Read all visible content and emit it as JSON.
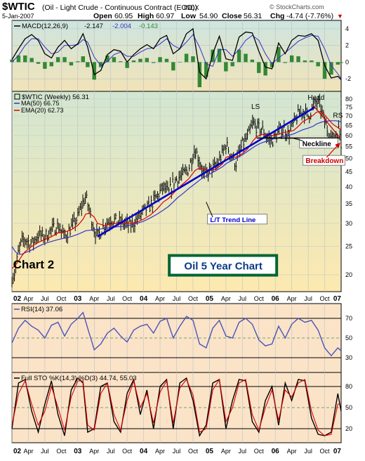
{
  "header": {
    "symbol": "$WTIC",
    "description": "(Oil - Light Crude - Continuous Contract (EOD))",
    "exchange": "INDX",
    "date": "5-Jan-2007",
    "open_label": "Open",
    "open": "60.95",
    "high_label": "High",
    "high": "60.97",
    "low_label": "Low",
    "low": "54.90",
    "close_label": "Close",
    "close": "56.31",
    "chg_label": "Chg",
    "chg": "-4.74 (-7.76%)",
    "chg_marker": "▼",
    "watermark": "© StockCharts.com"
  },
  "colors": {
    "price_bg_top": "#d2e6d2",
    "price_bg_bottom": "#fde9b0",
    "panel_bg": "#fbe3c8",
    "macd_bg_top": "#cde5e0",
    "macd_bg_bottom": "#f2e3b8",
    "price": "#000000",
    "ma50": "#3333cc",
    "ema20": "#dd0000",
    "rsi": "#4a55bb",
    "histogram": "#338833",
    "trendline": "#0000cc",
    "breakdown": "#cc0000",
    "title_box": "#006633",
    "title_text": "#0a3a8a"
  },
  "chart_data": [
    {
      "panel": "macd",
      "type": "line",
      "title": "MACD(12,26,9) -2.147, -2.004 -0.143",
      "legend": {
        "name": "MACD(12,26,9)",
        "macd": "-2.147",
        "signal": "-2.004",
        "histogram": "-0.143"
      },
      "y_ticks": [
        "4",
        "2",
        "0",
        "-2"
      ],
      "ylim": [
        -3.5,
        5.0
      ],
      "x": [
        2002.0,
        2002.1,
        2002.2,
        2002.3,
        2002.4,
        2002.5,
        2002.6,
        2002.7,
        2002.8,
        2002.9,
        2003.0,
        2003.08,
        2003.15,
        2003.25,
        2003.35,
        2003.45,
        2003.55,
        2003.65,
        2003.75,
        2003.85,
        2003.95,
        2004.05,
        2004.15,
        2004.25,
        2004.35,
        2004.45,
        2004.55,
        2004.65,
        2004.75,
        2004.85,
        2004.95,
        2005.05,
        2005.15,
        2005.25,
        2005.35,
        2005.45,
        2005.55,
        2005.65,
        2005.75,
        2005.85,
        2005.95,
        2006.05,
        2006.15,
        2006.25,
        2006.35,
        2006.45,
        2006.55,
        2006.65,
        2006.75,
        2006.85,
        2006.95,
        2007.0
      ],
      "series": [
        {
          "name": "MACD",
          "values": [
            0.3,
            1.6,
            2.8,
            3.3,
            2.6,
            1.0,
            0.5,
            1.8,
            2.6,
            1.6,
            2.2,
            3.4,
            1.8,
            -1.5,
            -1.0,
            0.9,
            1.5,
            1.3,
            0.0,
            0.9,
            1.6,
            2.1,
            1.6,
            2.8,
            3.2,
            1.0,
            1.6,
            3.4,
            4.0,
            -1.2,
            -2.0,
            1.0,
            3.1,
            0.4,
            0.2,
            3.0,
            3.6,
            3.5,
            1.3,
            -0.6,
            -0.8,
            2.3,
            1.0,
            2.6,
            3.2,
            3.1,
            3.4,
            2.6,
            -0.4,
            -1.9,
            -1.7,
            -2.1
          ]
        },
        {
          "name": "Signal",
          "values": [
            0.0,
            0.8,
            2.0,
            2.8,
            2.8,
            1.8,
            1.0,
            1.2,
            2.0,
            2.0,
            2.1,
            2.7,
            2.4,
            0.6,
            -0.4,
            0.1,
            0.9,
            1.2,
            0.7,
            0.7,
            1.2,
            1.6,
            1.7,
            2.2,
            2.8,
            2.0,
            1.6,
            2.4,
            3.3,
            1.8,
            -0.2,
            -0.5,
            1.5,
            1.5,
            0.7,
            1.5,
            2.6,
            3.2,
            2.6,
            1.0,
            -0.2,
            0.5,
            1.1,
            1.8,
            2.5,
            2.9,
            3.2,
            3.1,
            1.6,
            -0.4,
            -1.4,
            -2.0
          ]
        }
      ]
    },
    {
      "panel": "price",
      "type": "line",
      "title": "$WTIC (Weekly) 56.31",
      "yscale": "log",
      "ylim": [
        17.5,
        85
      ],
      "y_ticks": [
        "80",
        "75",
        "70",
        "65",
        "60",
        "55",
        "50",
        "45",
        "40",
        "35",
        "30",
        "25",
        "20"
      ],
      "x_ticks": [
        "02",
        "Apr",
        "Jul",
        "Oct",
        "03",
        "Apr",
        "Jul",
        "Oct",
        "04",
        "Apr",
        "Jul",
        "Oct",
        "05",
        "Apr",
        "Jul",
        "Oct",
        "06",
        "Apr",
        "Jul",
        "Oct",
        "07"
      ],
      "x": [
        2002.0,
        2002.05,
        2002.1,
        2002.15,
        2002.2,
        2002.3,
        2002.4,
        2002.5,
        2002.6,
        2002.7,
        2002.8,
        2002.9,
        2003.0,
        2003.08,
        2003.12,
        2003.18,
        2003.25,
        2003.3,
        2003.4,
        2003.5,
        2003.6,
        2003.7,
        2003.8,
        2003.9,
        2004.0,
        2004.1,
        2004.2,
        2004.3,
        2004.38,
        2004.45,
        2004.52,
        2004.6,
        2004.68,
        2004.78,
        2004.85,
        2004.92,
        2005.0,
        2005.1,
        2005.2,
        2005.25,
        2005.32,
        2005.4,
        2005.5,
        2005.58,
        2005.66,
        2005.72,
        2005.8,
        2005.88,
        2005.95,
        2006.05,
        2006.12,
        2006.2,
        2006.28,
        2006.35,
        2006.42,
        2006.5,
        2006.58,
        2006.62,
        2006.68,
        2006.74,
        2006.8,
        2006.86,
        2006.92,
        2006.97,
        2007.0
      ],
      "series": [
        {
          "name": "$WTIC",
          "values": [
            19.5,
            20.5,
            24.0,
            26.0,
            26.5,
            25.5,
            27.5,
            27.0,
            28.5,
            29.5,
            27.0,
            29.0,
            31.5,
            35.5,
            37.0,
            33.0,
            28.5,
            27.0,
            29.5,
            31.0,
            30.5,
            30.0,
            29.5,
            31.0,
            33.0,
            34.5,
            37.0,
            40.0,
            38.0,
            41.5,
            43.0,
            44.0,
            46.0,
            54.0,
            49.0,
            43.5,
            45.5,
            47.0,
            52.0,
            56.0,
            52.0,
            48.0,
            56.0,
            59.0,
            66.0,
            64.0,
            63.0,
            59.0,
            57.5,
            61.5,
            64.0,
            60.5,
            66.0,
            71.0,
            73.0,
            70.0,
            75.5,
            78.5,
            76.0,
            68.0,
            62.0,
            58.5,
            61.0,
            63.0,
            56.31
          ]
        },
        {
          "name": "MA(50) 66.75",
          "values": [
            25.0,
            24.0,
            23.5,
            23.5,
            23.8,
            24.3,
            25.0,
            25.6,
            26.0,
            26.4,
            26.7,
            27.0,
            27.5,
            28.0,
            28.3,
            28.4,
            28.5,
            28.6,
            28.8,
            29.0,
            29.2,
            29.3,
            29.6,
            30.0,
            30.5,
            31.3,
            32.2,
            33.3,
            34.3,
            35.5,
            36.8,
            38.0,
            39.4,
            41.0,
            42.2,
            43.2,
            44.2,
            45.5,
            46.9,
            48.0,
            49.0,
            50.0,
            51.5,
            53.0,
            54.5,
            55.6,
            56.7,
            57.5,
            58.2,
            59.0,
            59.6,
            60.0,
            60.8,
            61.8,
            62.8,
            63.6,
            64.6,
            65.6,
            66.4,
            67.0,
            67.3,
            67.4,
            67.4,
            67.1,
            66.75
          ]
        },
        {
          "name": "EMA(20) 62.73",
          "values": [
            21.0,
            21.5,
            22.3,
            23.2,
            24.0,
            25.0,
            25.8,
            26.4,
            27.0,
            27.8,
            28.0,
            28.5,
            29.5,
            31.0,
            32.3,
            32.5,
            31.5,
            30.0,
            29.5,
            29.8,
            30.0,
            30.0,
            30.0,
            30.3,
            31.0,
            32.0,
            33.5,
            35.5,
            36.5,
            38.0,
            39.5,
            41.0,
            42.5,
            45.5,
            46.5,
            46.0,
            45.5,
            46.0,
            48.0,
            50.5,
            51.0,
            50.5,
            52.0,
            54.0,
            57.5,
            59.5,
            60.5,
            60.5,
            60.0,
            60.5,
            61.5,
            61.8,
            62.5,
            64.5,
            67.0,
            68.5,
            70.5,
            72.0,
            72.5,
            71.0,
            68.5,
            66.0,
            64.5,
            63.5,
            62.73
          ]
        }
      ],
      "annotations": [
        {
          "text": "Head",
          "x": 2006.62,
          "y": 79.5,
          "kind": "label"
        },
        {
          "text": "LS",
          "x": 2005.7,
          "y": 74.0,
          "kind": "label"
        },
        {
          "text": "RS",
          "x": 2006.95,
          "y": 69.0,
          "kind": "label"
        },
        {
          "text": "Neckline",
          "x": 2006.4,
          "y": 55.5,
          "kind": "boxed"
        },
        {
          "text": "Breakdown",
          "x": 2006.45,
          "y": 48.5,
          "kind": "boxed-red"
        },
        {
          "text": "L/T Trend Line",
          "x": 2005.0,
          "y": 30.5,
          "kind": "boxed-blue"
        },
        {
          "text": "Chart 2",
          "x": 2002.55,
          "y": 21.0,
          "kind": "big"
        },
        {
          "text": "Oil 5 Year Chart",
          "x": 2005.2,
          "y": 21.3,
          "kind": "title-box"
        }
      ],
      "trend_line": {
        "x": [
          2003.3,
          2006.6
        ],
        "y": [
          27.0,
          75.0
        ]
      },
      "neckline": {
        "x": [
          2005.72,
          2006.98
        ],
        "y": [
          58.8,
          58.8
        ]
      }
    },
    {
      "panel": "rsi",
      "type": "line",
      "title": "RSI(14) 37.06",
      "y_ticks": [
        "70",
        "50",
        "30"
      ],
      "y_tick_values": [
        70,
        50,
        30
      ],
      "ylim": [
        15,
        85
      ],
      "x": [
        2002.0,
        2002.1,
        2002.2,
        2002.3,
        2002.4,
        2002.5,
        2002.6,
        2002.7,
        2002.8,
        2002.9,
        2003.0,
        2003.08,
        2003.15,
        2003.25,
        2003.35,
        2003.45,
        2003.55,
        2003.65,
        2003.75,
        2003.85,
        2003.95,
        2004.05,
        2004.15,
        2004.25,
        2004.35,
        2004.45,
        2004.55,
        2004.65,
        2004.75,
        2004.85,
        2004.95,
        2005.05,
        2005.15,
        2005.25,
        2005.35,
        2005.45,
        2005.55,
        2005.65,
        2005.75,
        2005.85,
        2005.95,
        2006.05,
        2006.15,
        2006.25,
        2006.35,
        2006.45,
        2006.55,
        2006.65,
        2006.75,
        2006.85,
        2006.95,
        2007.0
      ],
      "series": [
        {
          "name": "RSI(14)",
          "values": [
            45,
            60,
            68,
            62,
            58,
            50,
            63,
            66,
            52,
            64,
            70,
            76,
            60,
            38,
            44,
            55,
            60,
            52,
            46,
            58,
            62,
            64,
            55,
            67,
            70,
            50,
            62,
            72,
            68,
            44,
            40,
            60,
            68,
            52,
            50,
            66,
            70,
            64,
            48,
            42,
            44,
            62,
            50,
            64,
            70,
            66,
            68,
            58,
            40,
            32,
            40,
            37
          ]
        }
      ]
    },
    {
      "panel": "sto",
      "type": "line",
      "title": "Full STO %K(14,3) %D(3) 44.74, 55.03",
      "y_ticks": [
        "80",
        "50",
        "20"
      ],
      "y_tick_values": [
        80,
        50,
        20
      ],
      "ylim": [
        0,
        100
      ],
      "x_ticks": [
        "02",
        "Apr",
        "Jul",
        "Oct",
        "03",
        "Apr",
        "Jul",
        "Oct",
        "04",
        "Apr",
        "Jul",
        "Oct",
        "05",
        "Apr",
        "Jul",
        "Oct",
        "06",
        "Apr",
        "Jul",
        "Oct",
        "07"
      ],
      "x": [
        2002.0,
        2002.1,
        2002.2,
        2002.3,
        2002.4,
        2002.5,
        2002.6,
        2002.7,
        2002.8,
        2002.9,
        2003.0,
        2003.08,
        2003.15,
        2003.25,
        2003.35,
        2003.45,
        2003.55,
        2003.65,
        2003.75,
        2003.85,
        2003.95,
        2004.05,
        2004.15,
        2004.25,
        2004.35,
        2004.45,
        2004.55,
        2004.65,
        2004.75,
        2004.85,
        2004.95,
        2005.05,
        2005.15,
        2005.25,
        2005.35,
        2005.45,
        2005.55,
        2005.65,
        2005.75,
        2005.85,
        2005.95,
        2006.05,
        2006.15,
        2006.25,
        2006.35,
        2006.45,
        2006.55,
        2006.65,
        2006.75,
        2006.85,
        2006.95,
        2007.0
      ],
      "series": [
        {
          "name": "%K(14,3) 44.74",
          "values": [
            20,
            85,
            90,
            45,
            15,
            55,
            88,
            40,
            10,
            75,
            92,
            85,
            15,
            20,
            80,
            85,
            30,
            15,
            70,
            90,
            40,
            75,
            20,
            80,
            90,
            20,
            85,
            92,
            60,
            10,
            25,
            85,
            90,
            20,
            60,
            90,
            88,
            30,
            15,
            60,
            80,
            25,
            85,
            60,
            90,
            88,
            35,
            12,
            10,
            15,
            70,
            44.74
          ]
        },
        {
          "name": "%D(3) 55.03",
          "values": [
            25,
            70,
            88,
            55,
            25,
            45,
            80,
            50,
            18,
            65,
            88,
            88,
            25,
            18,
            70,
            85,
            40,
            18,
            60,
            88,
            50,
            70,
            28,
            72,
            88,
            28,
            78,
            90,
            68,
            15,
            20,
            75,
            90,
            30,
            50,
            85,
            90,
            40,
            18,
            50,
            75,
            32,
            75,
            65,
            85,
            90,
            45,
            18,
            10,
            12,
            55,
            55.03
          ]
        }
      ]
    }
  ]
}
